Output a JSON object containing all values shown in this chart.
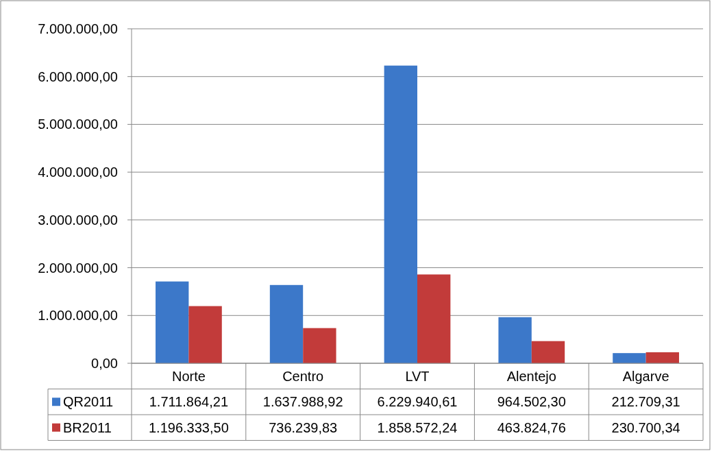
{
  "chart_data": {
    "type": "bar",
    "categories": [
      "Norte",
      "Centro",
      "LVT",
      "Alentejo",
      "Algarve"
    ],
    "series": [
      {
        "name": "QR2011",
        "color": "#3c78c9",
        "values": [
          1711864.21,
          1637988.92,
          6229940.61,
          964502.3,
          212709.31
        ],
        "value_labels": [
          "1.711.864,21",
          "1.637.988,92",
          "6.229.940,61",
          "964.502,30",
          "212.709,31"
        ]
      },
      {
        "name": "BR2011",
        "color": "#c23b3a",
        "values": [
          1196333.5,
          736239.83,
          1858572.24,
          463824.76,
          230700.34
        ],
        "value_labels": [
          "1.196.333,50",
          "736.239,83",
          "1.858.572,24",
          "463.824,76",
          "230.700,34"
        ]
      }
    ],
    "ylim": [
      0,
      7000000
    ],
    "yticks": [
      {
        "value": 0,
        "label": "0,00"
      },
      {
        "value": 1000000,
        "label": "1.000.000,00"
      },
      {
        "value": 2000000,
        "label": "2.000.000,00"
      },
      {
        "value": 3000000,
        "label": "3.000.000,00"
      },
      {
        "value": 4000000,
        "label": "4.000.000,00"
      },
      {
        "value": 5000000,
        "label": "5.000.000,00"
      },
      {
        "value": 6000000,
        "label": "6.000.000,00"
      },
      {
        "value": 7000000,
        "label": "7.000.000,00"
      }
    ],
    "grid": "y",
    "legend": "bottom"
  }
}
